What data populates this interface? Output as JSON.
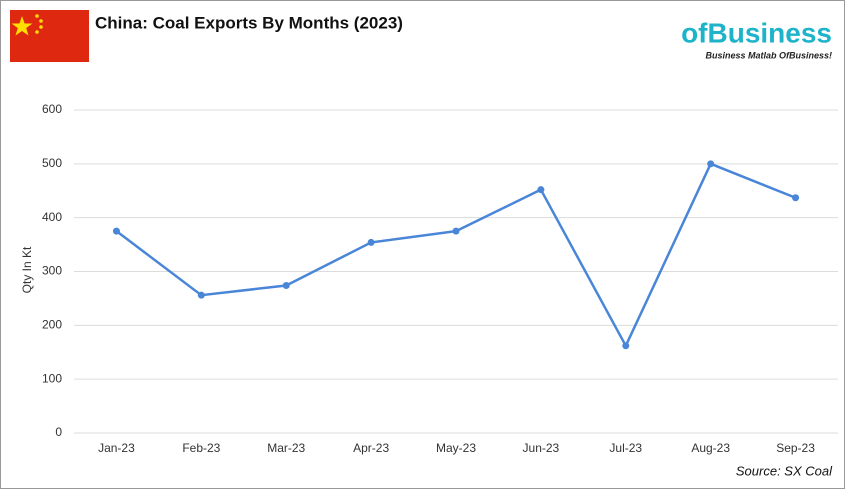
{
  "chart_data": {
    "type": "line",
    "title": "China: Coal Exports By Months (2023)",
    "y_label": "Qty In Kt",
    "source": "Source: SX Coal",
    "logo": {
      "name": "ofBusiness",
      "tagline": "Business Matlab OfBusiness!"
    },
    "categories": [
      "Jan-23",
      "Feb-23",
      "Mar-23",
      "Apr-23",
      "May-23",
      "Jun-23",
      "Jul-23",
      "Aug-23",
      "Sep-23"
    ],
    "series": [
      {
        "name": "Coal Exports",
        "color": "#4a86d8",
        "values": [
          375,
          256,
          274,
          354,
          375,
          452,
          162,
          500,
          437
        ]
      }
    ],
    "ylim": [
      0,
      600
    ],
    "yticks": [
      0,
      100,
      200,
      300,
      400,
      500,
      600
    ],
    "grid": true
  }
}
